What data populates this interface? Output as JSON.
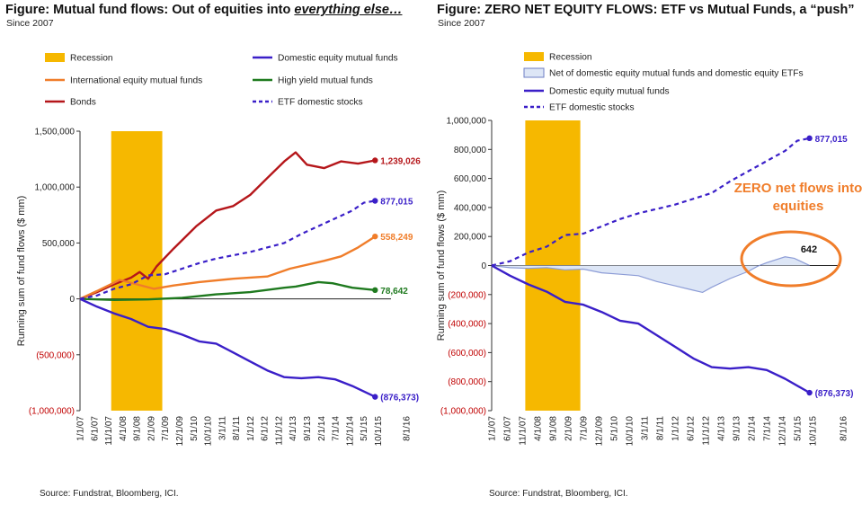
{
  "left": {
    "title_main": "Figure: Mutual fund flows: Out of equities into ",
    "title_emph": "everything else…",
    "subtitle": "Since 2007",
    "source": "Source: Fundstrat, Bloomberg, ICI.",
    "chart_data": {
      "type": "line",
      "ylabel": "Running sum of fund flows ($ mm)",
      "ylim": [
        -1000000,
        1500000
      ],
      "yticks": [
        "1,500,000",
        "1,000,000",
        "500,000",
        "0",
        "(500,000)",
        "(1,000,000)"
      ],
      "xticks": [
        "1/1/07",
        "6/1/07",
        "11/1/07",
        "4/1/08",
        "9/1/08",
        "2/1/09",
        "7/1/09",
        "12/1/09",
        "5/1/10",
        "10/1/10",
        "3/1/11",
        "8/1/11",
        "1/1/12",
        "6/1/12",
        "11/1/12",
        "4/1/13",
        "9/1/13",
        "2/1/14",
        "7/1/14",
        "12/1/14",
        "5/1/15",
        "10/1/15",
        "8/1/16"
      ],
      "recession": {
        "start": "12/1/07",
        "end": "6/1/09"
      },
      "legend": [
        {
          "label": "Recession",
          "kind": "band",
          "color": "#F6B800"
        },
        {
          "label": "Domestic equity mutual funds",
          "kind": "line",
          "color": "#3A1FC8"
        },
        {
          "label": "International equity mutual funds",
          "kind": "line",
          "color": "#F07D2A"
        },
        {
          "label": "High yield mutual funds",
          "kind": "line",
          "color": "#1F7A1F"
        },
        {
          "label": "Bonds",
          "kind": "line",
          "color": "#B5161A"
        },
        {
          "label": "ETF domestic stocks",
          "kind": "dash",
          "color": "#3A1FC8"
        }
      ],
      "series": [
        {
          "name": "Bonds",
          "color": "#B5161A",
          "dash": false,
          "end_label": "1,239,026",
          "points": [
            [
              "1/1/07",
              0
            ],
            [
              "7/1/07",
              60000
            ],
            [
              "1/1/08",
              130000
            ],
            [
              "7/1/08",
              190000
            ],
            [
              "10/1/08",
              240000
            ],
            [
              "1/1/09",
              180000
            ],
            [
              "4/1/09",
              290000
            ],
            [
              "10/1/09",
              450000
            ],
            [
              "6/1/10",
              650000
            ],
            [
              "1/1/11",
              790000
            ],
            [
              "7/1/11",
              830000
            ],
            [
              "1/1/12",
              930000
            ],
            [
              "7/1/12",
              1080000
            ],
            [
              "1/1/13",
              1230000
            ],
            [
              "5/1/13",
              1310000
            ],
            [
              "9/1/13",
              1200000
            ],
            [
              "3/1/14",
              1170000
            ],
            [
              "9/1/14",
              1230000
            ],
            [
              "3/1/15",
              1210000
            ],
            [
              "9/1/15",
              1239026
            ]
          ]
        },
        {
          "name": "International equity mutual funds",
          "color": "#F07D2A",
          "dash": false,
          "end_label": "558,249",
          "points": [
            [
              "1/1/07",
              0
            ],
            [
              "7/1/07",
              70000
            ],
            [
              "3/1/08",
              170000
            ],
            [
              "9/1/08",
              130000
            ],
            [
              "3/1/09",
              90000
            ],
            [
              "10/1/09",
              120000
            ],
            [
              "7/1/10",
              150000
            ],
            [
              "7/1/11",
              180000
            ],
            [
              "7/1/12",
              200000
            ],
            [
              "3/1/13",
              270000
            ],
            [
              "3/1/14",
              340000
            ],
            [
              "9/1/14",
              380000
            ],
            [
              "3/1/15",
              460000
            ],
            [
              "9/1/15",
              558249
            ]
          ]
        },
        {
          "name": "High yield mutual funds",
          "color": "#1F7A1F",
          "dash": false,
          "end_label": "78,642",
          "points": [
            [
              "1/1/07",
              0
            ],
            [
              "1/1/08",
              -10000
            ],
            [
              "1/1/09",
              -5000
            ],
            [
              "1/1/10",
              10000
            ],
            [
              "1/1/11",
              40000
            ],
            [
              "1/1/12",
              60000
            ],
            [
              "1/1/13",
              100000
            ],
            [
              "5/1/13",
              110000
            ],
            [
              "1/1/14",
              150000
            ],
            [
              "6/1/14",
              140000
            ],
            [
              "1/1/15",
              100000
            ],
            [
              "9/1/15",
              78642
            ]
          ]
        },
        {
          "name": "ETF domestic stocks",
          "color": "#3A1FC8",
          "dash": true,
          "end_label": "877,015",
          "points": [
            [
              "1/1/07",
              0
            ],
            [
              "7/1/07",
              30000
            ],
            [
              "1/1/08",
              90000
            ],
            [
              "7/1/08",
              130000
            ],
            [
              "1/1/09",
              210000
            ],
            [
              "7/1/09",
              220000
            ],
            [
              "1/1/10",
              270000
            ],
            [
              "7/1/10",
              320000
            ],
            [
              "1/1/11",
              360000
            ],
            [
              "1/1/12",
              420000
            ],
            [
              "1/1/13",
              500000
            ],
            [
              "7/1/13",
              580000
            ],
            [
              "1/1/14",
              650000
            ],
            [
              "7/1/14",
              720000
            ],
            [
              "1/1/15",
              790000
            ],
            [
              "5/1/15",
              860000
            ],
            [
              "9/1/15",
              877015
            ]
          ]
        },
        {
          "name": "Domestic equity mutual funds",
          "color": "#3A1FC8",
          "dash": false,
          "end_label": "(876,373)",
          "points": [
            [
              "1/1/07",
              0
            ],
            [
              "7/1/07",
              -70000
            ],
            [
              "1/1/08",
              -130000
            ],
            [
              "7/1/08",
              -180000
            ],
            [
              "1/1/09",
              -250000
            ],
            [
              "7/1/09",
              -270000
            ],
            [
              "1/1/10",
              -320000
            ],
            [
              "7/1/10",
              -380000
            ],
            [
              "1/1/11",
              -400000
            ],
            [
              "7/1/11",
              -480000
            ],
            [
              "1/1/12",
              -560000
            ],
            [
              "7/1/12",
              -640000
            ],
            [
              "1/1/13",
              -700000
            ],
            [
              "7/1/13",
              -710000
            ],
            [
              "1/1/14",
              -700000
            ],
            [
              "7/1/14",
              -720000
            ],
            [
              "1/1/15",
              -780000
            ],
            [
              "9/1/15",
              -876373
            ]
          ]
        }
      ]
    }
  },
  "right": {
    "title": "Figure: ZERO NET EQUITY FLOWS: ETF vs Mutual Funds, a “push”",
    "subtitle": "Since 2007",
    "source": "Source: Fundstrat, Bloomberg, ICI.",
    "annotation": "ZERO net flows into equities",
    "callout": "642",
    "chart_data": {
      "type": "line",
      "ylabel": "Running sum of fund flows ($ mm)",
      "ylim": [
        -1000000,
        1000000
      ],
      "yticks": [
        "1,000,000",
        "800,000",
        "600,000",
        "400,000",
        "200,000",
        "0",
        "(200,000)",
        "(400,000)",
        "(600,000)",
        "(800,000)",
        "(1,000,000)"
      ],
      "xticks": [
        "1/1/07",
        "6/1/07",
        "11/1/07",
        "4/1/08",
        "9/1/08",
        "2/1/09",
        "7/1/09",
        "12/1/09",
        "5/1/10",
        "10/1/10",
        "3/1/11",
        "8/1/11",
        "1/1/12",
        "6/1/12",
        "11/1/12",
        "4/1/13",
        "9/1/13",
        "2/1/14",
        "7/1/14",
        "12/1/14",
        "5/1/15",
        "10/1/15",
        "8/1/16"
      ],
      "recession": {
        "start": "12/1/07",
        "end": "6/1/09"
      },
      "legend": [
        {
          "label": "Recession",
          "kind": "band",
          "color": "#F6B800"
        },
        {
          "label": "Net of domestic equity mutual funds and domestic equity ETFs",
          "kind": "area",
          "color": "#DDE6F6"
        },
        {
          "label": "Domestic equity mutual funds",
          "kind": "line",
          "color": "#3A1FC8"
        },
        {
          "label": "ETF domestic stocks",
          "kind": "dash",
          "color": "#3A1FC8"
        }
      ],
      "series": [
        {
          "name": "Net of domestic equity mutual funds and domestic equity ETFs",
          "kind": "area",
          "color": "#8C9CD6",
          "end_label": "",
          "points": [
            [
              "1/1/07",
              0
            ],
            [
              "7/1/07",
              -15000
            ],
            [
              "1/1/08",
              -20000
            ],
            [
              "7/1/08",
              -15000
            ],
            [
              "1/1/09",
              -30000
            ],
            [
              "7/1/09",
              -25000
            ],
            [
              "1/1/10",
              -50000
            ],
            [
              "7/1/10",
              -60000
            ],
            [
              "1/1/11",
              -70000
            ],
            [
              "7/1/11",
              -110000
            ],
            [
              "1/1/12",
              -140000
            ],
            [
              "7/1/12",
              -170000
            ],
            [
              "10/1/12",
              -185000
            ],
            [
              "1/1/13",
              -150000
            ],
            [
              "7/1/13",
              -90000
            ],
            [
              "1/1/14",
              -40000
            ],
            [
              "4/1/14",
              -5000
            ],
            [
              "7/1/14",
              20000
            ],
            [
              "1/1/15",
              60000
            ],
            [
              "4/1/15",
              50000
            ],
            [
              "9/1/15",
              642
            ]
          ]
        },
        {
          "name": "ETF domestic stocks",
          "color": "#3A1FC8",
          "dash": true,
          "end_label": "877,015",
          "points": [
            [
              "1/1/07",
              0
            ],
            [
              "7/1/07",
              30000
            ],
            [
              "1/1/08",
              90000
            ],
            [
              "7/1/08",
              130000
            ],
            [
              "1/1/09",
              210000
            ],
            [
              "7/1/09",
              220000
            ],
            [
              "1/1/10",
              270000
            ],
            [
              "7/1/10",
              320000
            ],
            [
              "1/1/11",
              360000
            ],
            [
              "1/1/12",
              420000
            ],
            [
              "1/1/13",
              500000
            ],
            [
              "7/1/13",
              580000
            ],
            [
              "1/1/14",
              650000
            ],
            [
              "7/1/14",
              720000
            ],
            [
              "1/1/15",
              790000
            ],
            [
              "5/1/15",
              860000
            ],
            [
              "9/1/15",
              877015
            ]
          ]
        },
        {
          "name": "Domestic equity mutual funds",
          "color": "#3A1FC8",
          "dash": false,
          "end_label": "(876,373)",
          "points": [
            [
              "1/1/07",
              0
            ],
            [
              "7/1/07",
              -70000
            ],
            [
              "1/1/08",
              -130000
            ],
            [
              "7/1/08",
              -180000
            ],
            [
              "1/1/09",
              -250000
            ],
            [
              "7/1/09",
              -270000
            ],
            [
              "1/1/10",
              -320000
            ],
            [
              "7/1/10",
              -380000
            ],
            [
              "1/1/11",
              -400000
            ],
            [
              "7/1/11",
              -480000
            ],
            [
              "1/1/12",
              -560000
            ],
            [
              "7/1/12",
              -640000
            ],
            [
              "1/1/13",
              -700000
            ],
            [
              "7/1/13",
              -710000
            ],
            [
              "1/1/14",
              -700000
            ],
            [
              "7/1/14",
              -720000
            ],
            [
              "1/1/15",
              -780000
            ],
            [
              "9/1/15",
              -876373
            ]
          ]
        }
      ]
    }
  }
}
